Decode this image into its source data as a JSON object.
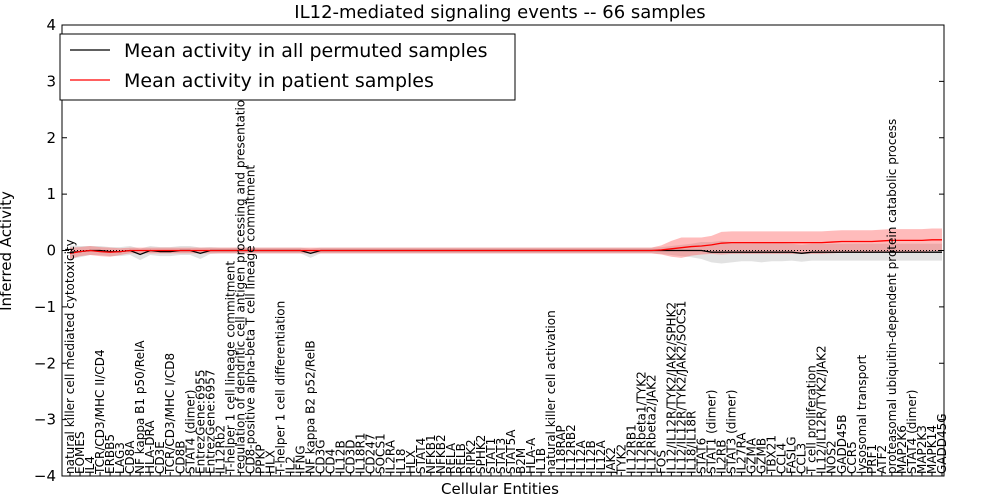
{
  "chart_data": {
    "type": "line",
    "title": "IL12-mediated signaling events -- 66 samples",
    "xlabel": "Cellular Entities",
    "ylabel": "Inferred Activity",
    "ylim": [
      -4,
      4
    ],
    "yticks": [
      "−4",
      "−3",
      "−2",
      "−1",
      "0",
      "1",
      "2",
      "3",
      "4"
    ],
    "legend": {
      "position": "top-left",
      "entries": [
        {
          "label": "Mean activity in all permuted samples",
          "color": "#000000"
        },
        {
          "label": "Mean activity in patient samples",
          "color": "#ff0000"
        }
      ]
    },
    "categories": [
      "natural killer cell mediated cytotoxicity",
      "EOMES",
      "IL4",
      "TCR/CD3/MHC II/CD4",
      "ERBB5",
      "LAG3",
      "CD8A",
      "NF kappa B1 p50/RelA",
      "HLA-DRA",
      "CD3E",
      "TCR/CD3/MHC I/CD8",
      "CD8B",
      "STAT4 (dimer)",
      "EntrezGene:6955",
      "EntrezGene:6957",
      "IL12Rb2",
      "T-helper 1 cell lineage commitment",
      "regulation of dendritic cell antigen processing and presentation",
      "CD8-positive alpha-beta T cell lineage commitment",
      "PPKP",
      "HLX",
      "T-helper 1 cell differentiation",
      "IL2",
      "IFNG",
      "NF kappa B2 p52/RelB",
      "CD3G",
      "CD4",
      "IL12B",
      "CD3D",
      "IL18R1",
      "CD247",
      "SOCS1",
      "IL2RA",
      "IL18",
      "HLX",
      "STAT4",
      "NFKB1",
      "NFKB2",
      "RELA",
      "RELB",
      "RIPK2",
      "SPHK2",
      "STAT1",
      "STAT3",
      "STAT5A",
      "B2M",
      "HLA-A",
      "IL1B",
      "natural killer cell activation",
      "IL18RAP",
      "IL12RB2",
      "IL12A",
      "IL12B",
      "IL12A",
      "JAK2",
      "TYK2",
      "IL12RB1",
      "IL12Rbeta1/TYK2",
      "IL12Rbeta2/JAK2",
      "FOS",
      "IL12/IL12R/TYK2/JAK2/SPHK2",
      "IL12/IL12R/TYK2/JAK2/SOCS1",
      "IL18/IL18R",
      "STAT6",
      "STAT1 (dimer)",
      "IL2RB",
      "STAT3 (dimer)",
      "IL27RA",
      "GZMA",
      "GZMB",
      "TBX21",
      "CCL4",
      "FASLG",
      "CCL3",
      "T cell proliferation",
      "IL12/IL12R/TYK2/JAK2",
      "NOS2",
      "GADD45B",
      "CCR5",
      "lysosomal transport",
      "PRF1",
      "ATF2",
      "proteasomal ubiquitin-dependent protein catabolic process",
      "MAP2K6",
      "STAT4 (dimer)",
      "MAP2K3",
      "MAPK14",
      "GADD45G"
    ],
    "series": [
      {
        "name": "Mean activity in all permuted samples",
        "color": "#000000",
        "values": [
          -0.03,
          -0.02,
          0.0,
          0.0,
          -0.02,
          -0.02,
          0.0,
          -0.07,
          0.0,
          -0.02,
          -0.02,
          0.0,
          0.0,
          -0.05,
          0.0,
          0.0,
          0.0,
          0.0,
          0.0,
          0.0,
          0.0,
          0.0,
          0.0,
          0.0,
          -0.05,
          0.0,
          0.0,
          0.0,
          0.0,
          0.0,
          0.0,
          0.0,
          0.0,
          0.0,
          0.0,
          0.0,
          0.0,
          0.0,
          0.0,
          0.0,
          0.0,
          0.0,
          0.0,
          0.0,
          0.0,
          0.0,
          0.0,
          0.0,
          0.0,
          0.0,
          0.0,
          0.0,
          0.0,
          0.0,
          0.0,
          0.0,
          0.0,
          0.0,
          0.0,
          0.0,
          0.0,
          0.0,
          0.0,
          0.0,
          -0.03,
          -0.03,
          -0.03,
          -0.03,
          -0.03,
          -0.03,
          -0.03,
          -0.03,
          -0.03,
          -0.05,
          -0.03,
          -0.03,
          -0.03,
          -0.03,
          -0.03,
          -0.03,
          -0.03,
          -0.03,
          -0.03,
          -0.03,
          -0.03,
          -0.03,
          -0.03,
          -0.03
        ],
        "band": [
          0.12,
          0.1,
          0.08,
          0.08,
          0.08,
          0.08,
          0.08,
          0.1,
          0.08,
          0.08,
          0.08,
          0.08,
          0.08,
          0.1,
          0.06,
          0.05,
          0.05,
          0.05,
          0.05,
          0.05,
          0.05,
          0.05,
          0.05,
          0.05,
          0.08,
          0.05,
          0.05,
          0.05,
          0.05,
          0.05,
          0.05,
          0.05,
          0.05,
          0.05,
          0.05,
          0.05,
          0.05,
          0.05,
          0.05,
          0.05,
          0.05,
          0.05,
          0.05,
          0.05,
          0.05,
          0.05,
          0.05,
          0.05,
          0.05,
          0.05,
          0.05,
          0.05,
          0.05,
          0.05,
          0.05,
          0.05,
          0.05,
          0.05,
          0.05,
          0.06,
          0.08,
          0.1,
          0.12,
          0.15,
          0.18,
          0.2,
          0.18,
          0.16,
          0.16,
          0.18,
          0.16,
          0.16,
          0.15,
          0.15,
          0.15,
          0.15,
          0.15,
          0.15,
          0.15,
          0.15,
          0.15,
          0.15,
          0.15,
          0.15,
          0.15,
          0.15,
          0.15,
          0.15
        ]
      },
      {
        "name": "Mean activity in patient samples",
        "color": "#ff0000",
        "values": [
          -0.05,
          -0.02,
          0.0,
          -0.02,
          -0.03,
          -0.02,
          0.0,
          0.0,
          0.0,
          0.0,
          0.0,
          0.0,
          0.0,
          0.0,
          0.0,
          0.0,
          0.0,
          0.0,
          0.0,
          0.0,
          0.0,
          0.0,
          0.0,
          0.0,
          0.0,
          0.0,
          0.0,
          0.0,
          0.0,
          0.0,
          0.0,
          0.0,
          0.0,
          0.0,
          0.0,
          0.0,
          0.0,
          0.0,
          0.0,
          0.0,
          0.0,
          0.0,
          0.0,
          0.0,
          0.0,
          0.0,
          0.0,
          0.0,
          0.0,
          0.0,
          0.0,
          0.0,
          0.0,
          0.0,
          0.0,
          0.0,
          0.0,
          0.0,
          0.0,
          0.01,
          0.03,
          0.05,
          0.07,
          0.08,
          0.1,
          0.13,
          0.14,
          0.14,
          0.14,
          0.14,
          0.14,
          0.14,
          0.14,
          0.14,
          0.14,
          0.14,
          0.15,
          0.16,
          0.16,
          0.16,
          0.16,
          0.17,
          0.18,
          0.18,
          0.18,
          0.18,
          0.19,
          0.19
        ],
        "band": [
          0.1,
          0.08,
          0.08,
          0.08,
          0.08,
          0.06,
          0.05,
          0.05,
          0.05,
          0.05,
          0.05,
          0.05,
          0.05,
          0.05,
          0.05,
          0.05,
          0.05,
          0.05,
          0.05,
          0.05,
          0.05,
          0.05,
          0.05,
          0.05,
          0.05,
          0.05,
          0.05,
          0.05,
          0.05,
          0.05,
          0.05,
          0.05,
          0.05,
          0.05,
          0.05,
          0.05,
          0.05,
          0.05,
          0.05,
          0.05,
          0.05,
          0.05,
          0.05,
          0.05,
          0.05,
          0.05,
          0.05,
          0.05,
          0.05,
          0.05,
          0.05,
          0.05,
          0.05,
          0.05,
          0.05,
          0.05,
          0.05,
          0.05,
          0.05,
          0.08,
          0.14,
          0.18,
          0.16,
          0.15,
          0.16,
          0.2,
          0.2,
          0.2,
          0.2,
          0.2,
          0.2,
          0.2,
          0.2,
          0.2,
          0.2,
          0.2,
          0.2,
          0.2,
          0.2,
          0.2,
          0.2,
          0.2,
          0.2,
          0.2,
          0.2,
          0.2,
          0.2,
          0.2
        ]
      }
    ]
  }
}
